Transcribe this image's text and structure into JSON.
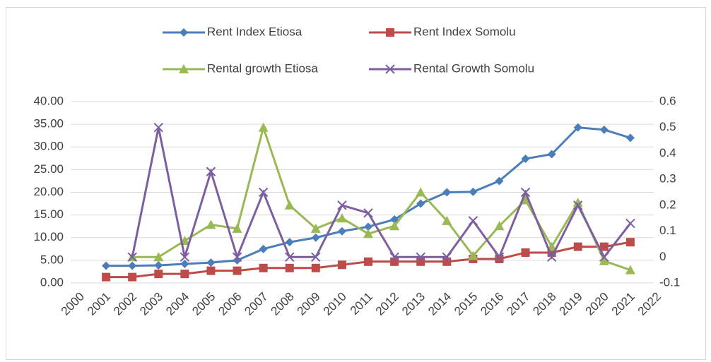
{
  "chart_data": {
    "type": "line",
    "x": [
      2001,
      2002,
      2003,
      2004,
      2005,
      2006,
      2007,
      2008,
      2009,
      2010,
      2011,
      2012,
      2013,
      2014,
      2015,
      2016,
      2017,
      2018,
      2019,
      2020,
      2021
    ],
    "xlim": [
      2000,
      2022
    ],
    "xticks": [
      2000,
      2001,
      2002,
      2003,
      2004,
      2005,
      2006,
      2007,
      2008,
      2009,
      2010,
      2011,
      2012,
      2013,
      2014,
      2015,
      2016,
      2017,
      2018,
      2019,
      2020,
      2021,
      2022
    ],
    "ylim": [
      0,
      40
    ],
    "yticks": [
      {
        "value": 0,
        "label": "0.00"
      },
      {
        "value": 5,
        "label": "5.00"
      },
      {
        "value": 10,
        "label": "10.00"
      },
      {
        "value": 15,
        "label": "15.00"
      },
      {
        "value": 20,
        "label": "20.00"
      },
      {
        "value": 25,
        "label": "25.00"
      },
      {
        "value": 30,
        "label": "30.00"
      },
      {
        "value": 35,
        "label": "35.00"
      },
      {
        "value": 40,
        "label": "40.00"
      }
    ],
    "y2lim": [
      -0.1,
      0.6
    ],
    "y2ticks": [
      -0.1,
      0,
      0.1,
      0.2,
      0.3,
      0.4,
      0.5,
      0.6
    ],
    "grid": true,
    "legend": "top",
    "series": [
      {
        "name": "Rent Index Etiosa",
        "color": "#4a7ebb",
        "marker": "diamond",
        "values": [
          3.8,
          3.8,
          3.9,
          4.2,
          4.5,
          5.0,
          7.5,
          9.0,
          10.0,
          11.4,
          12.4,
          14.0,
          17.5,
          20.0,
          20.1,
          22.5,
          27.4,
          28.4,
          34.3,
          33.8,
          32.0
        ]
      },
      {
        "name": "Rent Index Somolu",
        "color": "#be4b48",
        "marker": "square",
        "values": [
          1.3,
          1.3,
          2.0,
          2.0,
          2.7,
          2.7,
          3.3,
          3.3,
          3.3,
          4.0,
          4.7,
          4.7,
          4.7,
          4.7,
          5.3,
          5.3,
          6.7,
          6.7,
          8.0,
          8.0,
          9.0
        ]
      },
      {
        "name": "Rental growth Etiosa",
        "color": "#98b954",
        "marker": "triangle",
        "axis": "y2",
        "values": [
          null,
          0.0,
          0.0,
          0.063,
          0.125,
          0.11,
          0.5,
          0.2,
          0.11,
          0.15,
          0.09,
          0.12,
          0.25,
          0.14,
          0.005,
          0.12,
          0.22,
          0.04,
          0.21,
          -0.015,
          -0.05
        ]
      },
      {
        "name": "Rental Growth Somolu",
        "color": "#7d5fa0",
        "marker": "x",
        "axis": "y2",
        "values": [
          null,
          0.0,
          0.5,
          0.0,
          0.33,
          0.0,
          0.25,
          0.0,
          0.0,
          0.2,
          0.17,
          0.0,
          0.0,
          0.0,
          0.14,
          0.0,
          0.25,
          0.0,
          0.2,
          0.0,
          0.13
        ]
      }
    ]
  }
}
